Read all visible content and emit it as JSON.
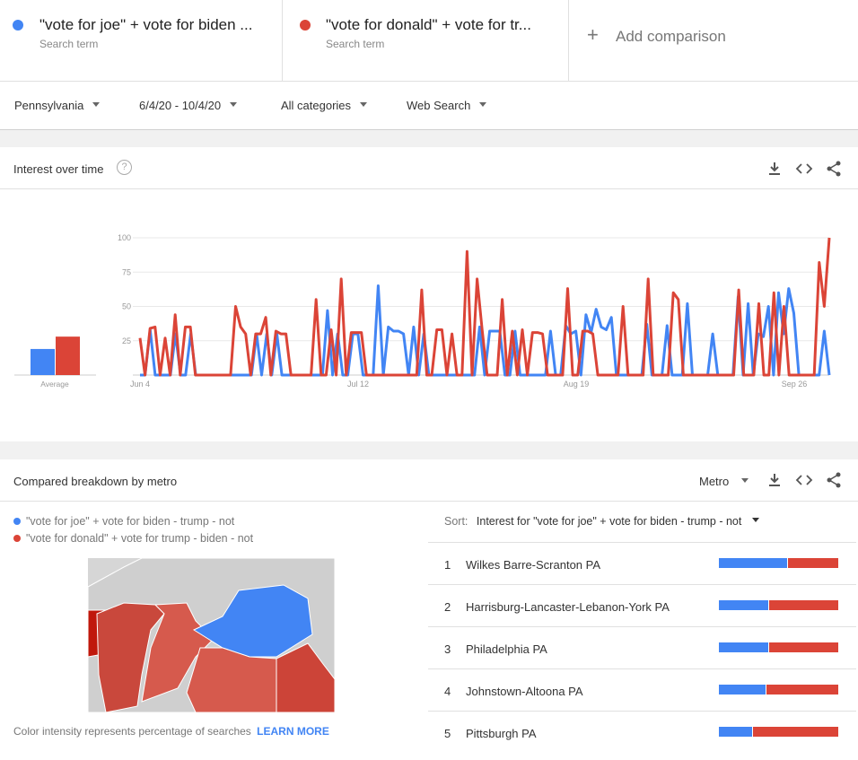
{
  "terms": [
    {
      "name": "\"vote for joe\" + vote for biden ...",
      "sub": "Search term",
      "color": "#4285f4"
    },
    {
      "name": "\"vote for donald\" + vote for tr...",
      "sub": "Search term",
      "color": "#db4437"
    }
  ],
  "add_comparison": {
    "label": "Add comparison"
  },
  "filters": {
    "region": "Pennsylvania",
    "dates": "6/4/20 - 10/4/20",
    "category": "All categories",
    "search_type": "Web Search"
  },
  "interest_card": {
    "title": "Interest over time",
    "help": "?",
    "average_label": "Average"
  },
  "chart_data": {
    "type": "line",
    "y_ticks": [
      "100",
      "75",
      "50",
      "25"
    ],
    "x_ticks": [
      "Jun 4",
      "Jul 12",
      "Aug 19",
      "Sep 26"
    ],
    "ylim": [
      0,
      100
    ],
    "averages": {
      "blue": 19,
      "red": 28
    },
    "series": [
      {
        "name": "\"vote for joe\" + vote for biden ...",
        "color": "#4285f4",
        "values": [
          0,
          0,
          33,
          0,
          0,
          0,
          0,
          30,
          0,
          0,
          30,
          0,
          0,
          0,
          0,
          0,
          0,
          0,
          0,
          0,
          0,
          0,
          0,
          30,
          0,
          30,
          0,
          30,
          0,
          0,
          0,
          0,
          0,
          0,
          0,
          0,
          0,
          47,
          0,
          30,
          0,
          0,
          30,
          30,
          0,
          0,
          0,
          65,
          0,
          35,
          32,
          32,
          30,
          0,
          35,
          0,
          30,
          0,
          0,
          0,
          0,
          0,
          0,
          0,
          0,
          0,
          0,
          35,
          0,
          32,
          32,
          32,
          0,
          0,
          32,
          0,
          0,
          0,
          0,
          0,
          0,
          32,
          0,
          0,
          36,
          30,
          32,
          0,
          44,
          31,
          48,
          35,
          33,
          42,
          0,
          0,
          0,
          0,
          0,
          0,
          37,
          0,
          0,
          0,
          36,
          0,
          0,
          0,
          52,
          0,
          0,
          0,
          0,
          30,
          0,
          0,
          0,
          0,
          57,
          0,
          52,
          0,
          30,
          28,
          50,
          0,
          60,
          30,
          63,
          45,
          0,
          0,
          0,
          0,
          0,
          32,
          0
        ]
      },
      {
        "name": "\"vote for donald\" + vote for tr...",
        "color": "#db4437",
        "values": [
          27,
          0,
          34,
          35,
          0,
          27,
          0,
          44,
          0,
          35,
          35,
          0,
          0,
          0,
          0,
          0,
          0,
          0,
          0,
          50,
          35,
          30,
          0,
          30,
          30,
          42,
          0,
          32,
          30,
          30,
          0,
          0,
          0,
          0,
          0,
          55,
          0,
          0,
          33,
          0,
          70,
          0,
          31,
          31,
          31,
          0,
          0,
          0,
          0,
          0,
          0,
          0,
          0,
          0,
          0,
          0,
          62,
          0,
          0,
          33,
          33,
          0,
          30,
          0,
          0,
          90,
          0,
          70,
          33,
          0,
          0,
          0,
          55,
          0,
          32,
          0,
          33,
          0,
          31,
          31,
          30,
          0,
          0,
          0,
          0,
          63,
          0,
          0,
          32,
          32,
          30,
          0,
          0,
          0,
          0,
          0,
          50,
          0,
          0,
          0,
          0,
          70,
          0,
          0,
          0,
          0,
          60,
          55,
          0,
          0,
          0,
          0,
          0,
          0,
          0,
          0,
          0,
          0,
          0,
          62,
          0,
          0,
          0,
          52,
          0,
          0,
          60,
          0,
          50,
          0,
          0,
          0,
          0,
          0,
          0,
          82,
          50,
          100
        ]
      }
    ]
  },
  "breakdown": {
    "title": "Compared breakdown by metro",
    "metro_select": "Metro",
    "legend": [
      {
        "label": "\"vote for joe\" + vote for biden - trump - not",
        "color": "#4285f4"
      },
      {
        "label": "\"vote for donald\" + vote for trump - biden - not",
        "color": "#db4437"
      }
    ],
    "sort_label": "Sort:",
    "sort_value": "Interest for \"vote for joe\" + vote for biden - trump - not",
    "footer_text": "Color intensity represents percentage of searches",
    "learn_more": "LEARN MORE",
    "rows": [
      {
        "rank": "1",
        "metro": "Wilkes Barre-Scranton PA",
        "blue_pct": 57
      },
      {
        "rank": "2",
        "metro": "Harrisburg-Lancaster-Lebanon-York PA",
        "blue_pct": 41
      },
      {
        "rank": "3",
        "metro": "Philadelphia PA",
        "blue_pct": 41
      },
      {
        "rank": "4",
        "metro": "Johnstown-Altoona PA",
        "blue_pct": 39
      },
      {
        "rank": "5",
        "metro": "Pittsburgh PA",
        "blue_pct": 28
      }
    ]
  }
}
